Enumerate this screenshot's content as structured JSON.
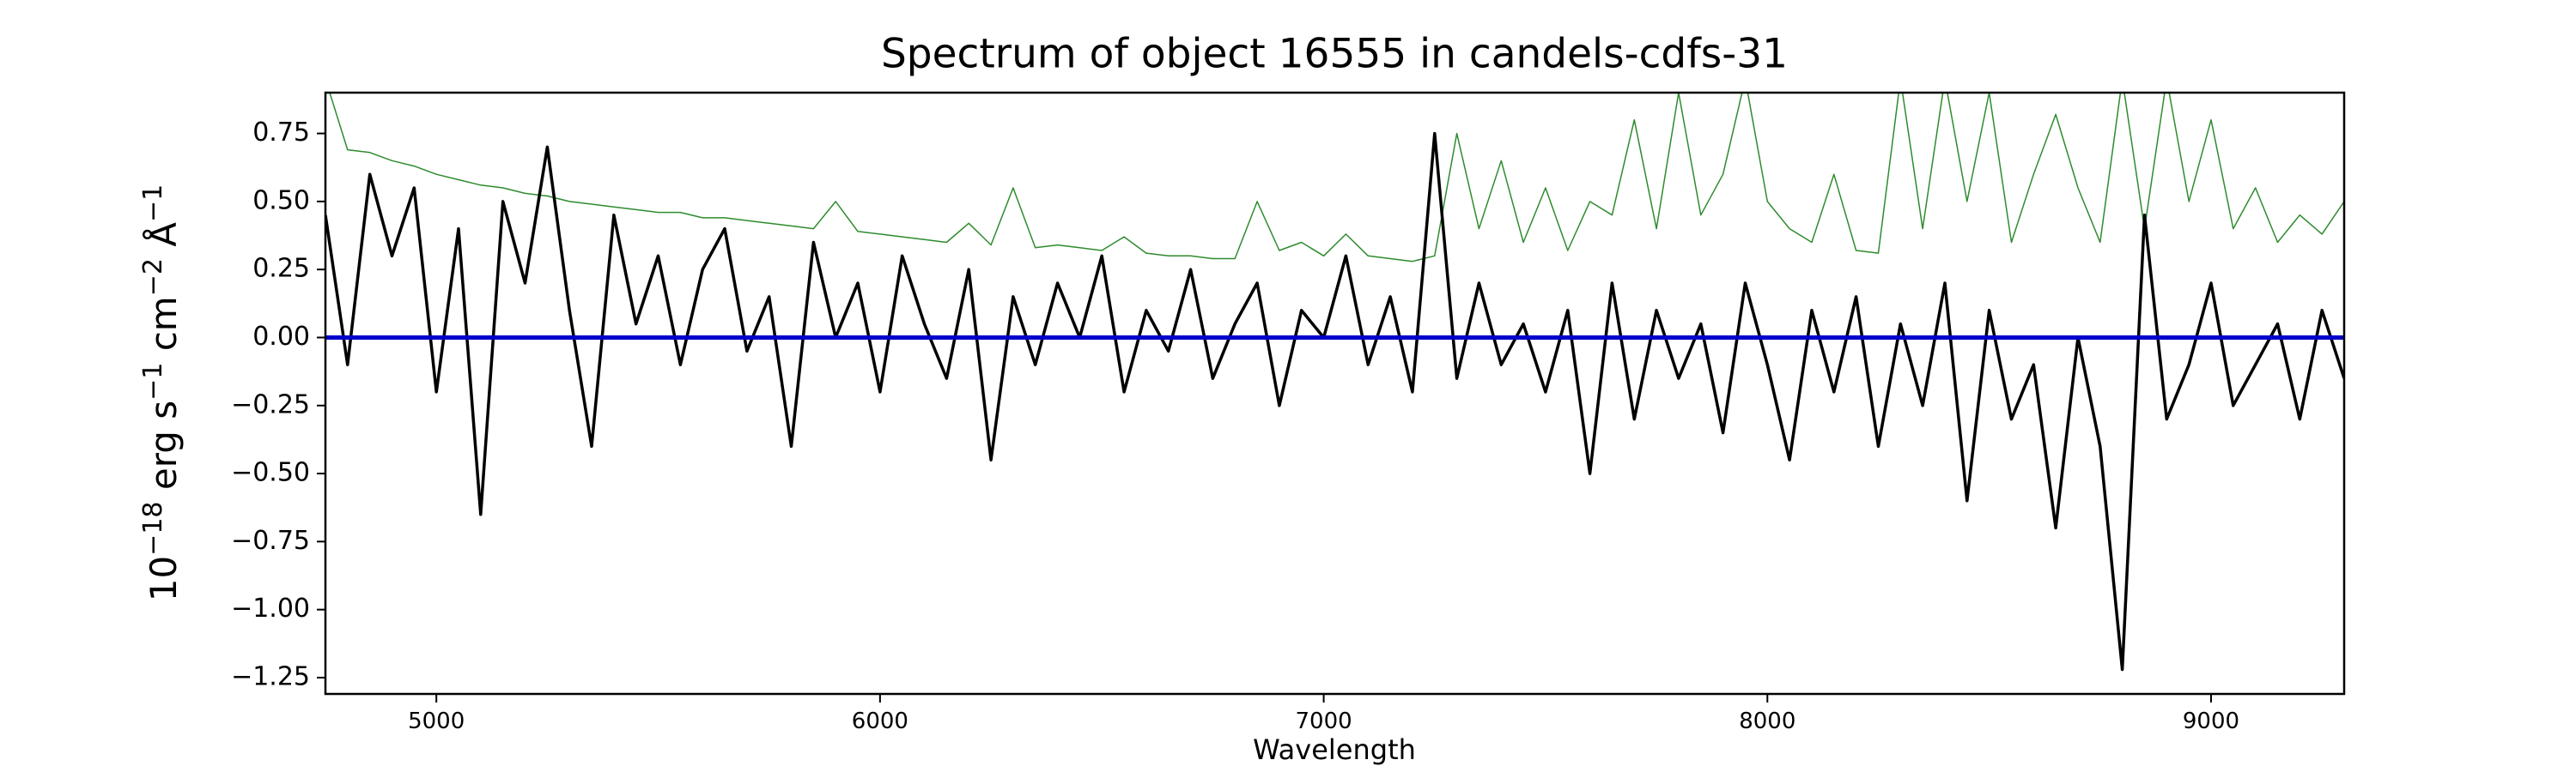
{
  "chart_data": {
    "type": "line",
    "title": "Spectrum of object 16555 in candels-cdfs-31",
    "xlabel": "Wavelength",
    "ylabel_parts": [
      {
        "text": "10"
      },
      {
        "text": "−18",
        "sup": true
      },
      {
        "text": " erg s"
      },
      {
        "text": "−1",
        "sup": true
      },
      {
        "text": " cm"
      },
      {
        "text": "−2",
        "sup": true
      },
      {
        "text": " Å"
      },
      {
        "text": "−1",
        "sup": true
      }
    ],
    "xlim": [
      4750,
      9300
    ],
    "ylim": [
      -1.31,
      0.9
    ],
    "xticks": [
      5000,
      6000,
      7000,
      8000,
      9000
    ],
    "yticks": [
      {
        "value": 0.75,
        "label": "0.75"
      },
      {
        "value": 0.5,
        "label": "0.50"
      },
      {
        "value": 0.25,
        "label": "0.25"
      },
      {
        "value": 0,
        "label": "0.00"
      },
      {
        "value": -0.25,
        "label": "−0.25"
      },
      {
        "value": -0.5,
        "label": "−0.50"
      },
      {
        "value": -0.75,
        "label": "−0.75"
      },
      {
        "value": -1,
        "label": "−1.00"
      },
      {
        "value": -1.25,
        "label": "−1.25"
      }
    ],
    "hlines": [
      {
        "value": 0,
        "color": "#0000cc"
      }
    ],
    "x": [
      4750,
      4800,
      4850,
      4900,
      4950,
      5000,
      5050,
      5100,
      5150,
      5200,
      5250,
      5300,
      5350,
      5400,
      5450,
      5500,
      5550,
      5600,
      5650,
      5700,
      5750,
      5800,
      5850,
      5900,
      5950,
      6000,
      6050,
      6100,
      6150,
      6200,
      6250,
      6300,
      6350,
      6400,
      6450,
      6500,
      6550,
      6600,
      6650,
      6700,
      6750,
      6800,
      6850,
      6900,
      6950,
      7000,
      7050,
      7100,
      7150,
      7200,
      7250,
      7300,
      7350,
      7400,
      7450,
      7500,
      7550,
      7600,
      7650,
      7700,
      7750,
      7800,
      7850,
      7900,
      7950,
      8000,
      8050,
      8100,
      8150,
      8200,
      8250,
      8300,
      8350,
      8400,
      8450,
      8500,
      8550,
      8600,
      8650,
      8700,
      8750,
      8800,
      8850,
      8900,
      8950,
      9000,
      9050,
      9100,
      9150,
      9200,
      9250,
      9300
    ],
    "series": [
      {
        "color": "#2e8b2e",
        "width": 1.5,
        "values": [
          0.95,
          0.69,
          0.68,
          0.65,
          0.63,
          0.6,
          0.58,
          0.56,
          0.55,
          0.53,
          0.52,
          0.5,
          0.49,
          0.48,
          0.47,
          0.46,
          0.46,
          0.44,
          0.44,
          0.43,
          0.42,
          0.41,
          0.4,
          0.5,
          0.39,
          0.38,
          0.37,
          0.36,
          0.35,
          0.42,
          0.34,
          0.55,
          0.33,
          0.34,
          0.33,
          0.32,
          0.37,
          0.31,
          0.3,
          0.3,
          0.29,
          0.29,
          0.5,
          0.32,
          0.35,
          0.3,
          0.38,
          0.3,
          0.29,
          0.28,
          0.3,
          0.75,
          0.4,
          0.65,
          0.35,
          0.55,
          0.32,
          0.5,
          0.45,
          0.8,
          0.4,
          0.9,
          0.45,
          0.6,
          0.95,
          0.5,
          0.4,
          0.35,
          0.6,
          0.32,
          0.31,
          0.95,
          0.4,
          0.95,
          0.5,
          0.9,
          0.35,
          0.6,
          0.82,
          0.55,
          0.35,
          0.95,
          0.4,
          0.95,
          0.5,
          0.8,
          0.4,
          0.55,
          0.35,
          0.45,
          0.38,
          0.5
        ]
      },
      {
        "color": "#000000",
        "width": 3.5,
        "values": [
          0.45,
          -0.1,
          0.6,
          0.3,
          0.55,
          -0.2,
          0.4,
          -0.65,
          0.5,
          0.2,
          0.7,
          0.1,
          -0.4,
          0.45,
          0.05,
          0.3,
          -0.1,
          0.25,
          0.4,
          -0.05,
          0.15,
          -0.4,
          0.35,
          0.0,
          0.2,
          -0.2,
          0.3,
          0.05,
          -0.15,
          0.25,
          -0.45,
          0.15,
          -0.1,
          0.2,
          0.0,
          0.3,
          -0.2,
          0.1,
          -0.05,
          0.25,
          -0.15,
          0.05,
          0.2,
          -0.25,
          0.1,
          0.0,
          0.3,
          -0.1,
          0.15,
          -0.2,
          0.75,
          -0.15,
          0.2,
          -0.1,
          0.05,
          -0.2,
          0.1,
          -0.5,
          0.2,
          -0.3,
          0.1,
          -0.15,
          0.05,
          -0.35,
          0.2,
          -0.1,
          -0.45,
          0.1,
          -0.2,
          0.15,
          -0.4,
          0.05,
          -0.25,
          0.2,
          -0.6,
          0.1,
          -0.3,
          -0.1,
          -0.7,
          0.0,
          -0.4,
          -1.22,
          0.45,
          -0.3,
          -0.1,
          0.2,
          -0.25,
          -0.1,
          0.05,
          -0.3,
          0.1,
          -0.15
        ]
      }
    ]
  }
}
